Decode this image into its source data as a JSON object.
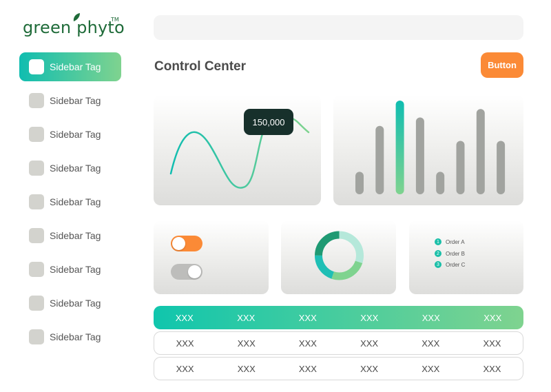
{
  "logo": {
    "text": "green phyto",
    "tm": "TM"
  },
  "sidebar": {
    "items": [
      {
        "label": "Sidebar Tag",
        "active": true
      },
      {
        "label": "Sidebar Tag",
        "active": false
      },
      {
        "label": "Sidebar Tag",
        "active": false
      },
      {
        "label": "Sidebar Tag",
        "active": false
      },
      {
        "label": "Sidebar Tag",
        "active": false
      },
      {
        "label": "Sidebar Tag",
        "active": false
      },
      {
        "label": "Sidebar Tag",
        "active": false
      },
      {
        "label": "Sidebar Tag",
        "active": false
      },
      {
        "label": "Sidebar Tag",
        "active": false
      }
    ]
  },
  "search": {
    "placeholder": ""
  },
  "header": {
    "title": "Control Center",
    "button_label": "Button"
  },
  "line_chart": {
    "tooltip": "150,000"
  },
  "toggles": [
    {
      "on": false,
      "color": "#fb8a36"
    },
    {
      "on": true,
      "color": "#bdbdbb"
    }
  ],
  "legend": {
    "items": [
      {
        "num": "1",
        "label": "Order A"
      },
      {
        "num": "2",
        "label": "Order B"
      },
      {
        "num": "3",
        "label": "Order C"
      }
    ]
  },
  "table": {
    "header": [
      "XXX",
      "XXX",
      "XXX",
      "XXX",
      "XXX",
      "XXX"
    ],
    "rows": [
      [
        "XXX",
        "XXX",
        "XXX",
        "XXX",
        "XXX",
        "XXX"
      ],
      [
        "XXX",
        "XXX",
        "XXX",
        "XXX",
        "XXX",
        "XXX"
      ]
    ]
  },
  "colors": {
    "accent_start": "#10bdb0",
    "accent_end": "#7fd38f",
    "button": "#fb8a36",
    "logo": "#1f6b39"
  },
  "chart_data": [
    {
      "type": "line",
      "values": [
        0.45,
        0.9,
        0.75,
        0.1,
        0.85,
        0.75
      ],
      "highlight_label": "150,000"
    },
    {
      "type": "bar",
      "values": [
        24,
        73,
        100,
        82,
        24,
        57,
        91,
        57
      ],
      "highlight_index": 2
    },
    {
      "type": "pie",
      "values": [
        30,
        25,
        20,
        25
      ],
      "colors": [
        "#b5e8da",
        "#7fd38f",
        "#1fbfb5",
        "#1f9a73"
      ]
    }
  ]
}
